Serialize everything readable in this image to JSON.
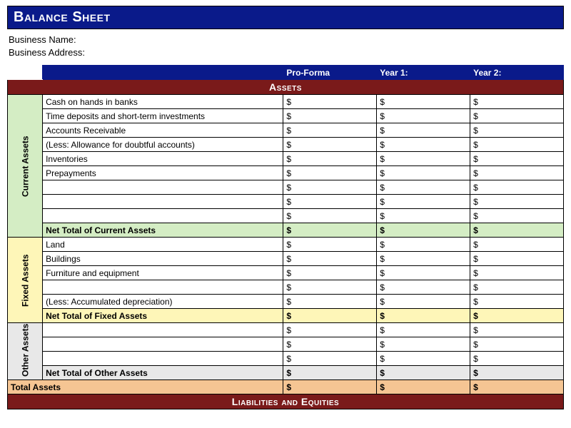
{
  "title": "Balance Sheet",
  "info": {
    "business_name_label": "Business Name:",
    "business_address_label": "Business Address:"
  },
  "columns": {
    "c1": "Pro-Forma",
    "c2": "Year 1:",
    "c3": "Year 2:"
  },
  "sections": {
    "assets_header": "Assets",
    "liabilities_header": "Liabilities and Equities"
  },
  "groups": {
    "current_label": "Current Assets",
    "fixed_label": "Fixed Assets",
    "other_label": "Other Assets"
  },
  "currency_symbol": "$",
  "current_assets": {
    "rows": [
      "Cash on hands in banks",
      "Time deposits and short-term investments",
      "Accounts Receivable",
      "(Less: Allowance for doubtful accounts)",
      "Inventories",
      "Prepayments",
      "",
      "",
      ""
    ],
    "subtotal_label": "Net Total of Current Assets"
  },
  "fixed_assets": {
    "rows": [
      "Land",
      "Buildings",
      "Furniture and equipment",
      "",
      "(Less: Accumulated depreciation)"
    ],
    "subtotal_label": "Net Total of Fixed Assets"
  },
  "other_assets": {
    "rows": [
      "",
      "",
      ""
    ],
    "subtotal_label": "Net Total of Other Assets"
  },
  "total_assets_label": "Total Assets",
  "colors": {
    "title_bg": "#0a1a8a",
    "section_bg": "#7a1a1a",
    "current_bg": "#d4edc4",
    "fixed_bg": "#fef6b8",
    "other_bg": "#e8e8e8",
    "total_bg": "#f5c593"
  }
}
